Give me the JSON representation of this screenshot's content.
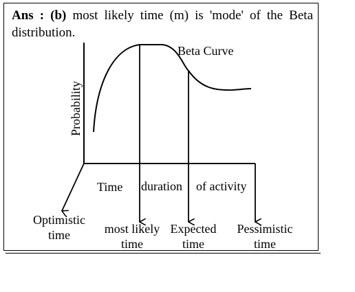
{
  "answer": {
    "prefix": "Ans : (b)",
    "text": " most likely time (m) is 'mode' of the Beta distribution."
  },
  "diagram": {
    "curve_label": "Beta Curve",
    "y_axis_label": "Probability",
    "x_axis_words": [
      "Time",
      "duration",
      "of activity"
    ],
    "points": [
      {
        "line1": "Optimistic",
        "line2": "time"
      },
      {
        "line1": "most likely",
        "line2": "time"
      },
      {
        "line1": "Expected",
        "line2": "time"
      },
      {
        "line1": "Pessimistic",
        "line2": "time"
      }
    ]
  }
}
